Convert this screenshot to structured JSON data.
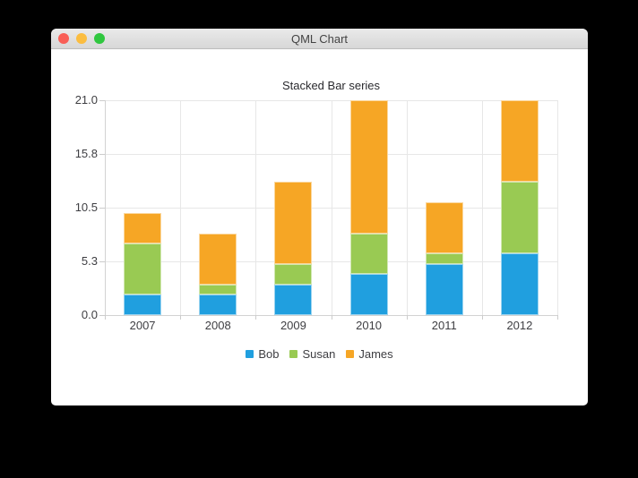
{
  "window": {
    "title": "QML Chart",
    "controls": {
      "close_color": "#f95f57",
      "minimize_color": "#fbbd40",
      "zoom_color": "#30c73f"
    }
  },
  "chart_data": {
    "type": "bar",
    "stacked": true,
    "title": "Stacked Bar series",
    "categories": [
      "2007",
      "2008",
      "2009",
      "2010",
      "2011",
      "2012"
    ],
    "series": [
      {
        "name": "Bob",
        "color": "#209fdf",
        "border_color": "#9bd4f0",
        "values": [
          2,
          2,
          3,
          4,
          5,
          6
        ]
      },
      {
        "name": "Susan",
        "color": "#99ca53",
        "border_color": "#d1e7b2",
        "values": [
          5,
          1,
          2,
          4,
          1,
          7
        ]
      },
      {
        "name": "James",
        "color": "#f6a625",
        "border_color": "#fbd79d",
        "values": [
          3,
          5,
          8,
          13,
          5,
          8
        ]
      }
    ],
    "totals": [
      10,
      8,
      13,
      21,
      11,
      21
    ],
    "ylim": [
      0,
      21
    ],
    "y_tick_labels": [
      "21.0",
      "15.8",
      "10.5",
      "5.3",
      "0.0"
    ],
    "grid": true,
    "legend_position": "bottom"
  }
}
